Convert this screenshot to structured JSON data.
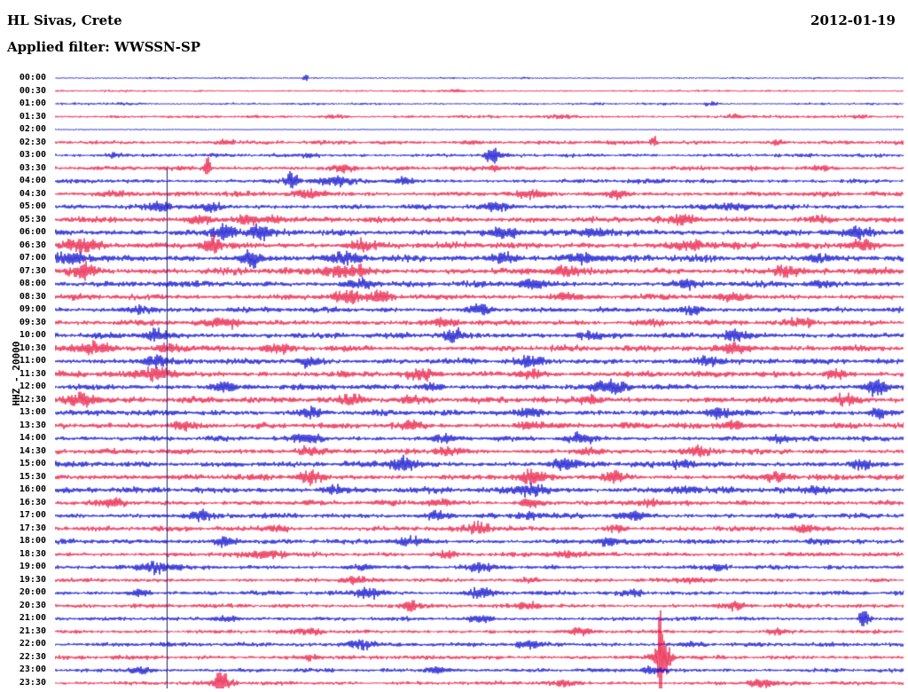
{
  "header": {
    "station": "HL Sivas, Crete",
    "date": "2012-01-19",
    "filter": "Applied filter: WWSSN-SP"
  },
  "chart_data": {
    "type": "line",
    "title": "HL Sivas, Crete",
    "subtitle": "Applied filter: WWSSN-SP",
    "date": "2012-01-19",
    "y_axis_label": "HHZ - 20000",
    "row_interval_minutes": 30,
    "legend": "alternating blue/red half-hour helicorder traces",
    "colors": {
      "blue": "#0000cc",
      "red": "#e8103c",
      "event_line": "#1a1a6e"
    },
    "event_line": {
      "pos": 0.132,
      "from_row": 7
    },
    "rows": [
      {
        "label": "00:00",
        "color": "blue",
        "amp": 1.0,
        "bursts": [
          [
            0.295,
            6,
            0.003
          ]
        ]
      },
      {
        "label": "00:30",
        "color": "red",
        "amp": 1.2,
        "bursts": [
          [
            0.47,
            2,
            0.01
          ]
        ]
      },
      {
        "label": "01:00",
        "color": "blue",
        "amp": 1.3,
        "bursts": [
          [
            0.08,
            2,
            0.015
          ],
          [
            0.77,
            2.5,
            0.01
          ]
        ]
      },
      {
        "label": "01:30",
        "color": "red",
        "amp": 1.6,
        "bursts": [
          [
            0.33,
            2.5,
            0.015
          ],
          [
            0.6,
            2,
            0.015
          ],
          [
            0.8,
            3,
            0.01
          ],
          [
            0.95,
            2.5,
            0.01
          ]
        ]
      },
      {
        "label": "02:00",
        "color": "blue",
        "amp": 0.7,
        "bursts": []
      },
      {
        "label": "02:30",
        "color": "red",
        "amp": 2.2,
        "bursts": [
          [
            0.2,
            4,
            0.01
          ],
          [
            0.49,
            3,
            0.01
          ],
          [
            0.705,
            7,
            0.004
          ],
          [
            0.85,
            3,
            0.01
          ]
        ]
      },
      {
        "label": "03:00",
        "color": "blue",
        "amp": 2.0,
        "bursts": [
          [
            0.515,
            13,
            0.008
          ],
          [
            0.07,
            3,
            0.012
          ],
          [
            0.3,
            3,
            0.01
          ]
        ]
      },
      {
        "label": "03:30",
        "color": "red",
        "amp": 2.4,
        "bursts": [
          [
            0.18,
            15,
            0.004
          ],
          [
            0.34,
            5,
            0.015
          ],
          [
            0.52,
            3,
            0.01
          ],
          [
            0.9,
            3,
            0.01
          ]
        ]
      },
      {
        "label": "04:00",
        "color": "blue",
        "amp": 2.4,
        "bursts": [
          [
            0.28,
            13,
            0.007
          ],
          [
            0.33,
            6,
            0.02
          ],
          [
            0.41,
            4,
            0.012
          ]
        ]
      },
      {
        "label": "04:30",
        "color": "red",
        "amp": 2.8,
        "bursts": [
          [
            0.07,
            4,
            0.02
          ],
          [
            0.3,
            5,
            0.02
          ],
          [
            0.56,
            4,
            0.015
          ],
          [
            0.66,
            5,
            0.01
          ]
        ]
      },
      {
        "label": "05:00",
        "color": "blue",
        "amp": 2.8,
        "bursts": [
          [
            0.125,
            8,
            0.012
          ],
          [
            0.185,
            6,
            0.012
          ],
          [
            0.52,
            4,
            0.015
          ],
          [
            0.8,
            4,
            0.02
          ]
        ]
      },
      {
        "label": "05:30",
        "color": "red",
        "amp": 3.2,
        "bursts": [
          [
            0.17,
            6,
            0.015
          ],
          [
            0.225,
            7,
            0.012
          ],
          [
            0.26,
            5,
            0.015
          ],
          [
            0.74,
            5,
            0.02
          ],
          [
            0.9,
            4,
            0.015
          ]
        ]
      },
      {
        "label": "06:00",
        "color": "blue",
        "amp": 3.6,
        "bursts": [
          [
            0.2,
            9,
            0.015
          ],
          [
            0.24,
            10,
            0.012
          ],
          [
            0.53,
            6,
            0.015
          ],
          [
            0.64,
            6,
            0.015
          ],
          [
            0.95,
            6,
            0.015
          ]
        ]
      },
      {
        "label": "06:30",
        "color": "red",
        "amp": 3.6,
        "bursts": [
          [
            0.03,
            9,
            0.02
          ],
          [
            0.185,
            12,
            0.012
          ],
          [
            0.36,
            6,
            0.015
          ],
          [
            0.75,
            6,
            0.02
          ],
          [
            0.95,
            7,
            0.015
          ]
        ]
      },
      {
        "label": "07:00",
        "color": "blue",
        "amp": 3.6,
        "bursts": [
          [
            0.02,
            7,
            0.02
          ],
          [
            0.23,
            11,
            0.012
          ],
          [
            0.34,
            6,
            0.02
          ],
          [
            0.53,
            7,
            0.015
          ],
          [
            0.62,
            7,
            0.015
          ],
          [
            0.9,
            5,
            0.015
          ]
        ]
      },
      {
        "label": "07:30",
        "color": "red",
        "amp": 3.6,
        "bursts": [
          [
            0.035,
            11,
            0.015
          ],
          [
            0.33,
            8,
            0.015
          ],
          [
            0.36,
            7,
            0.012
          ],
          [
            0.6,
            5,
            0.015
          ],
          [
            0.86,
            6,
            0.015
          ]
        ]
      },
      {
        "label": "08:00",
        "color": "blue",
        "amp": 3.2,
        "bursts": [
          [
            0.36,
            8,
            0.015
          ],
          [
            0.56,
            6,
            0.015
          ],
          [
            0.74,
            5,
            0.015
          ],
          [
            0.9,
            5,
            0.012
          ]
        ]
      },
      {
        "label": "08:30",
        "color": "red",
        "amp": 3.2,
        "bursts": [
          [
            0.345,
            9,
            0.018
          ],
          [
            0.385,
            8,
            0.012
          ],
          [
            0.6,
            5,
            0.015
          ],
          [
            0.8,
            4,
            0.015
          ]
        ]
      },
      {
        "label": "09:00",
        "color": "blue",
        "amp": 2.8,
        "bursts": [
          [
            0.1,
            5,
            0.02
          ],
          [
            0.5,
            6,
            0.015
          ],
          [
            0.75,
            5,
            0.015
          ]
        ]
      },
      {
        "label": "09:30",
        "color": "red",
        "amp": 3.0,
        "bursts": [
          [
            0.2,
            6,
            0.02
          ],
          [
            0.46,
            5,
            0.015
          ],
          [
            0.7,
            4,
            0.015
          ],
          [
            0.88,
            5,
            0.015
          ]
        ]
      },
      {
        "label": "10:00",
        "color": "blue",
        "amp": 3.2,
        "bursts": [
          [
            0.12,
            7,
            0.015
          ],
          [
            0.47,
            7,
            0.012
          ],
          [
            0.63,
            5,
            0.015
          ],
          [
            0.8,
            6,
            0.015
          ]
        ]
      },
      {
        "label": "10:30",
        "color": "red",
        "amp": 3.4,
        "bursts": [
          [
            0.045,
            8,
            0.02
          ],
          [
            0.135,
            7,
            0.015
          ],
          [
            0.26,
            5,
            0.015
          ],
          [
            0.8,
            7,
            0.02
          ]
        ]
      },
      {
        "label": "11:00",
        "color": "blue",
        "amp": 3.2,
        "bursts": [
          [
            0.12,
            7,
            0.015
          ],
          [
            0.3,
            6,
            0.015
          ],
          [
            0.56,
            5,
            0.015
          ],
          [
            0.77,
            6,
            0.015
          ]
        ]
      },
      {
        "label": "11:30",
        "color": "red",
        "amp": 3.4,
        "bursts": [
          [
            0.12,
            8,
            0.02
          ],
          [
            0.43,
            6,
            0.015
          ],
          [
            0.56,
            6,
            0.015
          ],
          [
            0.92,
            6,
            0.012
          ]
        ]
      },
      {
        "label": "12:00",
        "color": "blue",
        "amp": 3.2,
        "bursts": [
          [
            0.2,
            6,
            0.015
          ],
          [
            0.44,
            5,
            0.015
          ],
          [
            0.655,
            8,
            0.02
          ],
          [
            0.965,
            10,
            0.012
          ]
        ]
      },
      {
        "label": "12:30",
        "color": "red",
        "amp": 3.4,
        "bursts": [
          [
            0.03,
            9,
            0.02
          ],
          [
            0.35,
            7,
            0.015
          ],
          [
            0.42,
            6,
            0.012
          ],
          [
            0.63,
            5,
            0.015
          ],
          [
            0.93,
            6,
            0.012
          ]
        ]
      },
      {
        "label": "13:00",
        "color": "blue",
        "amp": 3.2,
        "bursts": [
          [
            0.3,
            6,
            0.015
          ],
          [
            0.56,
            6,
            0.015
          ],
          [
            0.78,
            5,
            0.015
          ],
          [
            0.97,
            9,
            0.01
          ]
        ]
      },
      {
        "label": "13:30",
        "color": "red",
        "amp": 3.2,
        "bursts": [
          [
            0.15,
            6,
            0.015
          ],
          [
            0.42,
            5,
            0.015
          ],
          [
            0.56,
            6,
            0.015
          ],
          [
            0.8,
            5,
            0.015
          ]
        ]
      },
      {
        "label": "14:00",
        "color": "blue",
        "amp": 2.8,
        "bursts": [
          [
            0.3,
            7,
            0.015
          ],
          [
            0.46,
            5,
            0.015
          ],
          [
            0.62,
            6,
            0.015
          ],
          [
            0.85,
            5,
            0.012
          ]
        ]
      },
      {
        "label": "14:30",
        "color": "red",
        "amp": 3.0,
        "bursts": [
          [
            0.3,
            6,
            0.015
          ],
          [
            0.46,
            6,
            0.012
          ],
          [
            0.63,
            5,
            0.015
          ],
          [
            0.76,
            6,
            0.015
          ]
        ]
      },
      {
        "label": "15:00",
        "color": "blue",
        "amp": 3.2,
        "bursts": [
          [
            0.41,
            9,
            0.015
          ],
          [
            0.6,
            7,
            0.015
          ],
          [
            0.74,
            5,
            0.015
          ],
          [
            0.95,
            7,
            0.012
          ]
        ]
      },
      {
        "label": "15:30",
        "color": "red",
        "amp": 3.2,
        "bursts": [
          [
            0.3,
            7,
            0.015
          ],
          [
            0.56,
            8,
            0.015
          ],
          [
            0.66,
            6,
            0.012
          ],
          [
            0.85,
            5,
            0.015
          ]
        ]
      },
      {
        "label": "16:00",
        "color": "blue",
        "amp": 3.2,
        "bursts": [
          [
            0.33,
            5,
            0.015
          ],
          [
            0.56,
            8,
            0.02
          ],
          [
            0.74,
            5,
            0.015
          ],
          [
            0.9,
            7,
            0.012
          ]
        ]
      },
      {
        "label": "16:30",
        "color": "red",
        "amp": 2.8,
        "bursts": [
          [
            0.07,
            6,
            0.015
          ],
          [
            0.45,
            5,
            0.015
          ],
          [
            0.56,
            5,
            0.012
          ],
          [
            0.7,
            5,
            0.015
          ]
        ]
      },
      {
        "label": "17:00",
        "color": "blue",
        "amp": 2.8,
        "bursts": [
          [
            0.17,
            7,
            0.012
          ],
          [
            0.45,
            6,
            0.015
          ],
          [
            0.56,
            5,
            0.012
          ],
          [
            0.68,
            6,
            0.015
          ]
        ]
      },
      {
        "label": "17:30",
        "color": "red",
        "amp": 2.8,
        "bursts": [
          [
            0.26,
            5,
            0.015
          ],
          [
            0.5,
            7,
            0.015
          ],
          [
            0.66,
            5,
            0.012
          ],
          [
            0.88,
            4,
            0.012
          ]
        ]
      },
      {
        "label": "18:00",
        "color": "blue",
        "amp": 2.8,
        "bursts": [
          [
            0.2,
            8,
            0.012
          ],
          [
            0.42,
            5,
            0.015
          ],
          [
            0.65,
            6,
            0.015
          ],
          [
            0.9,
            4,
            0.012
          ]
        ]
      },
      {
        "label": "18:30",
        "color": "red",
        "amp": 2.6,
        "bursts": [
          [
            0.25,
            6,
            0.02
          ],
          [
            0.46,
            4,
            0.015
          ],
          [
            0.6,
            5,
            0.015
          ]
        ]
      },
      {
        "label": "19:00",
        "color": "blue",
        "amp": 2.4,
        "bursts": [
          [
            0.12,
            7,
            0.02
          ],
          [
            0.36,
            4,
            0.015
          ],
          [
            0.5,
            6,
            0.015
          ],
          [
            0.78,
            4,
            0.012
          ]
        ]
      },
      {
        "label": "19:30",
        "color": "red",
        "amp": 2.2,
        "bursts": [
          [
            0.35,
            4,
            0.015
          ],
          [
            0.56,
            4,
            0.012
          ],
          [
            0.75,
            4,
            0.015
          ]
        ]
      },
      {
        "label": "20:00",
        "color": "blue",
        "amp": 2.4,
        "bursts": [
          [
            0.1,
            6,
            0.012
          ],
          [
            0.37,
            8,
            0.018
          ],
          [
            0.5,
            6,
            0.015
          ],
          [
            0.68,
            4,
            0.012
          ]
        ]
      },
      {
        "label": "20:30",
        "color": "red",
        "amp": 2.4,
        "bursts": [
          [
            0.42,
            8,
            0.012
          ],
          [
            0.56,
            4,
            0.015
          ],
          [
            0.8,
            4,
            0.012
          ]
        ]
      },
      {
        "label": "21:00",
        "color": "blue",
        "amp": 2.2,
        "bursts": [
          [
            0.2,
            4,
            0.015
          ],
          [
            0.5,
            4,
            0.015
          ],
          [
            0.953,
            15,
            0.006
          ]
        ]
      },
      {
        "label": "21:30",
        "color": "red",
        "amp": 2.2,
        "bursts": [
          [
            0.3,
            4,
            0.015
          ],
          [
            0.62,
            4,
            0.012
          ],
          [
            0.85,
            4,
            0.012
          ]
        ]
      },
      {
        "label": "22:00",
        "color": "blue",
        "amp": 2.4,
        "bursts": [
          [
            0.36,
            6,
            0.018
          ],
          [
            0.56,
            5,
            0.015
          ],
          [
            0.75,
            4,
            0.012
          ]
        ]
      },
      {
        "label": "22:30",
        "color": "red",
        "amp": 2.4,
        "bursts": [
          [
            0.713,
            70,
            0.003
          ],
          [
            0.715,
            26,
            0.01
          ],
          [
            0.3,
            4,
            0.015
          ]
        ]
      },
      {
        "label": "23:00",
        "color": "blue",
        "amp": 2.2,
        "bursts": [
          [
            0.1,
            5,
            0.015
          ],
          [
            0.45,
            4,
            0.015
          ],
          [
            0.7,
            5,
            0.012
          ]
        ]
      },
      {
        "label": "23:30",
        "color": "red",
        "amp": 2.2,
        "bursts": [
          [
            0.196,
            20,
            0.005
          ],
          [
            0.2,
            8,
            0.012
          ],
          [
            0.83,
            6,
            0.015
          ],
          [
            0.6,
            4,
            0.012
          ]
        ]
      }
    ]
  }
}
